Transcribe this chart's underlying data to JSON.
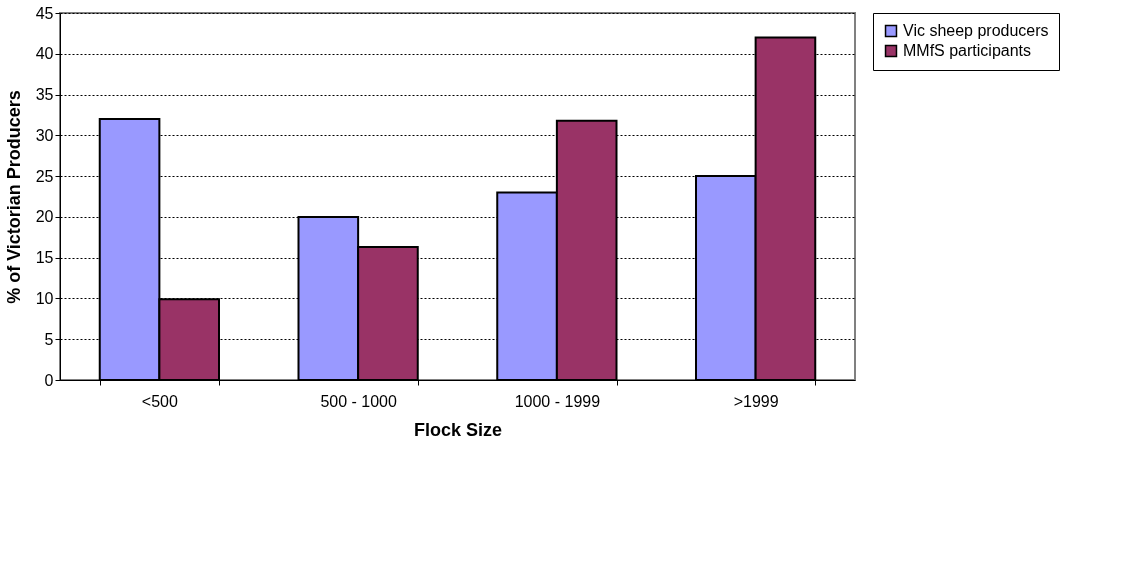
{
  "chart_data": {
    "type": "bar",
    "xlabel": "Flock Size",
    "ylabel": "% of Victorian Producers",
    "categories": [
      "<500",
      "500 - 1000",
      "1000 - 1999",
      ">1999"
    ],
    "series": [
      {
        "name": "Vic sheep producers",
        "color": "#9999ff",
        "values": [
          32,
          20,
          23,
          25
        ]
      },
      {
        "name": "MMfS participants",
        "color": "#993366",
        "values": [
          9.9,
          16.3,
          31.8,
          42
        ]
      }
    ],
    "ylim": [
      0,
      45
    ],
    "yticks": [
      0,
      5,
      10,
      15,
      20,
      25,
      30,
      35,
      40,
      45
    ],
    "grid": "y",
    "legend": "right"
  }
}
